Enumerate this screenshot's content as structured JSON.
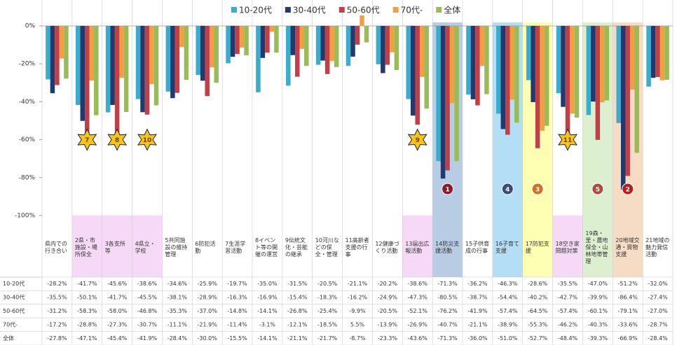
{
  "chart_data": {
    "type": "bar",
    "categories": [
      "県内での行き合い",
      "2県・市施設・場所保全",
      "3各支所等",
      "4県立・学校",
      "5共同施設の維持管理",
      "6防犯活動",
      "7生涯学習活動",
      "8イベント等の開催の運営",
      "9伝統文化・芸能の継承",
      "10河川などの保全・管理",
      "11高齢者支援の行事",
      "12健康づくり活動",
      "13届出広報活動",
      "14防災支援活動",
      "15子供育成の行事",
      "16子育て支援",
      "17防犯支援",
      "18空き家問題対策",
      "19森・里・農地保全・山林地帯管理",
      "20地域交通・買物支援",
      "21地域の魅力発信活動"
    ],
    "series": [
      {
        "name": "10-20代",
        "color": "#3aaccc",
        "values": [
          -28.2,
          -41.7,
          -45.6,
          -38.6,
          -34.6,
          -25.9,
          -19.7,
          -35.0,
          -31.5,
          -20.5,
          -21.1,
          -20.2,
          -38.6,
          -71.3,
          -36.2,
          -46.3,
          -28.6,
          -35.5,
          -47.0,
          -51.2,
          -32.0
        ],
        "value_labels": [
          "-28.2%",
          "-41.7%",
          "-45.6%",
          "-38.6%",
          "-34.6%",
          "-25.9%",
          "-19.7%",
          "-35.0%",
          "-31.5%",
          "-20.5%",
          "-21.1%",
          "-20.2%",
          "-38.6%",
          "-71.3%",
          "-36.2%",
          "-46.3%",
          "-28.6%",
          "-35.5%",
          "-47.0%",
          "-51.2%",
          "-32.0%"
        ]
      },
      {
        "name": "30-40代",
        "color": "#1f3a6e",
        "values": [
          -35.5,
          -50.1,
          -41.7,
          -45.5,
          -38.1,
          -28.9,
          -16.3,
          -16.9,
          -15.4,
          -18.3,
          -16.2,
          -24.9,
          -47.3,
          -80.5,
          -38.7,
          -54.4,
          -40.2,
          -42.7,
          -39.9,
          -86.4,
          -27.4
        ],
        "value_labels": [
          "-35.5%",
          "-50.1%",
          "-41.7%",
          "-45.5%",
          "-38.1%",
          "-28.9%",
          "-16.3%",
          "-16.9%",
          "-15.4%",
          "-18.3%",
          "-16.2%",
          "-24.9%",
          "-47.3%",
          "-80.5%",
          "-38.7%",
          "-54.4%",
          "-40.2%",
          "-42.7%",
          "-39.9%",
          "-86.4%",
          "-27.4%"
        ]
      },
      {
        "name": "50-60代",
        "color": "#c0404a",
        "values": [
          -31.2,
          -58.3,
          -58.0,
          -46.8,
          -35.3,
          -37.0,
          -14.8,
          -14.1,
          -26.8,
          -25.4,
          -9.9,
          -20.5,
          -52.1,
          -76.2,
          -41.9,
          -57.4,
          -64.5,
          -57.4,
          -60.1,
          -79.1,
          -27.0
        ],
        "value_labels": [
          "-31.2%",
          "-58.3%",
          "-58.0%",
          "-46.8%",
          "-35.3%",
          "-37.0%",
          "-14.8%",
          "-14.1%",
          "-26.8%",
          "-25.4%",
          "-9.9%",
          "-20.5%",
          "-52.1%",
          "-76.2%",
          "-41.9%",
          "-57.4%",
          "-64.5%",
          "-57.4%",
          "-60.1%",
          "-79.1%",
          "-27.0%"
        ]
      },
      {
        "name": "70代-",
        "color": "#f0a040",
        "values": [
          -17.2,
          -28.8,
          -27.3,
          -30.7,
          -11.1,
          -21.9,
          -11.4,
          -3.1,
          -12.1,
          -18.5,
          5.5,
          -13.9,
          -26.9,
          -40.7,
          -21.1,
          -38.9,
          -55.3,
          -46.2,
          -40.3,
          -33.6,
          -28.7
        ],
        "value_labels": [
          "-17.2%",
          "-28.8%",
          "-27.3%",
          "-30.7%",
          "-11.1%",
          "-21.9%",
          "-11.4%",
          "-3.1%",
          "-12.1%",
          "-18.5%",
          "5.5%",
          "-13.9%",
          "-26.9%",
          "-40.7%",
          "-21.1%",
          "-38.9%",
          "-55.3%",
          "-46.2%",
          "-40.3%",
          "-33.6%",
          "-28.7%"
        ]
      },
      {
        "name": "全体",
        "color": "#9bbb59",
        "values": [
          -27.8,
          -47.1,
          -45.4,
          -41.9,
          -28.4,
          -30.0,
          -15.5,
          -14.1,
          -21.1,
          -21.7,
          -8.7,
          -23.3,
          -43.6,
          -71.3,
          -36.0,
          -51.0,
          -52.7,
          -48.4,
          -39.3,
          -66.9,
          -28.4
        ],
        "value_labels": [
          "-27.8%",
          "-47.1%",
          "-45.4%",
          "-41.9%",
          "-28.4%",
          "-30.0%",
          "-15.5%",
          "-14.1%",
          "-21.1%",
          "-21.7%",
          "-8.7%",
          "-23.3%",
          "-43.6%",
          "-71.3%",
          "-36.0%",
          "-51.0%",
          "-52.7%",
          "-48.4%",
          "-39.3%",
          "-66.9%",
          "-28.4%"
        ]
      }
    ],
    "ylim": [
      -100,
      0
    ],
    "yticks": [
      {
        "value": 0,
        "label": "0%"
      },
      {
        "value": -20,
        "label": "-20%"
      },
      {
        "value": -40,
        "label": "-40%"
      },
      {
        "value": -60,
        "label": "-60%"
      },
      {
        "value": -80,
        "label": "-80%"
      },
      {
        "value": -100,
        "label": "-100%"
      }
    ],
    "legend": "top",
    "annotations": [
      {
        "label": "7",
        "category": "2県・市施設・場所保全",
        "shape": "star"
      },
      {
        "label": "8",
        "category": "3各支所等",
        "shape": "star"
      },
      {
        "label": "10",
        "category": "4県立・学校",
        "shape": "star"
      },
      {
        "label": "9",
        "category": "13届出広報活動",
        "shape": "star"
      },
      {
        "label": "11",
        "category": "18空き家問題対策",
        "shape": "star"
      },
      {
        "label": "1",
        "category": "14防災支援活動",
        "shape": "circle",
        "color": "#8b1a2a"
      },
      {
        "label": "4",
        "category": "16子育て支援",
        "shape": "circle",
        "color": "#3a4a7a"
      },
      {
        "label": "3",
        "category": "17防犯支援",
        "shape": "circle",
        "color": "#d07020"
      },
      {
        "label": "5",
        "category": "19森・里・農地保全・山林地帯管理",
        "shape": "circle",
        "color": "#b04a3a"
      },
      {
        "label": "2",
        "category": "20地域交通・買物支援",
        "shape": "circle",
        "color": "#b02020"
      }
    ]
  }
}
